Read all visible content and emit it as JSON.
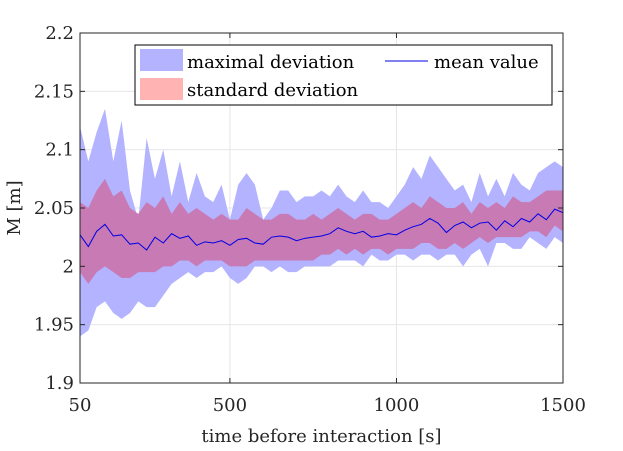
{
  "chart_data": {
    "type": "area",
    "xlabel": "time before interaction [s]",
    "ylabel": "M [m]",
    "xlim": [
      50,
      1500
    ],
    "ylim": [
      1.9,
      2.2
    ],
    "xticks": [
      50,
      500,
      1000,
      1500
    ],
    "xtick_labels": [
      "50",
      "500",
      "1000",
      "1500"
    ],
    "yticks": [
      1.9,
      1.95,
      2.0,
      2.05,
      2.1,
      2.15,
      2.2
    ],
    "ytick_labels": [
      "1.9",
      "1.95",
      "2",
      "2.05",
      "2.1",
      "2.15",
      "2.2"
    ],
    "grid": true,
    "legend_position": "top-right",
    "colors": {
      "max_fill": "#b3b3ff",
      "std_fill": "#ffb3b3",
      "std_overlap": "#c77ab3",
      "mean_line": "#0000e6",
      "axis": "#262626",
      "grid": "#e6e6e6"
    },
    "legend": [
      {
        "key": "max",
        "label": "maximal deviation"
      },
      {
        "key": "mean",
        "label": "mean value"
      },
      {
        "key": "std",
        "label": "standard deviation"
      }
    ],
    "x": [
      50,
      75,
      100,
      125,
      150,
      175,
      200,
      225,
      250,
      275,
      300,
      325,
      350,
      375,
      400,
      425,
      450,
      475,
      500,
      525,
      550,
      575,
      600,
      625,
      650,
      675,
      700,
      725,
      750,
      775,
      800,
      825,
      850,
      875,
      900,
      925,
      950,
      975,
      1000,
      1025,
      1050,
      1075,
      1100,
      1125,
      1150,
      1175,
      1200,
      1225,
      1250,
      1275,
      1300,
      1325,
      1350,
      1375,
      1400,
      1425,
      1450,
      1475,
      1500
    ],
    "series": [
      {
        "key": "max",
        "upper": [
          2.12,
          2.09,
          2.115,
          2.135,
          2.09,
          2.125,
          2.065,
          2.04,
          2.11,
          2.075,
          2.1,
          2.06,
          2.09,
          2.055,
          2.08,
          2.06,
          2.055,
          2.07,
          2.04,
          2.07,
          2.08,
          2.07,
          2.04,
          2.05,
          2.065,
          2.065,
          2.055,
          2.06,
          2.06,
          2.065,
          2.06,
          2.07,
          2.06,
          2.055,
          2.065,
          2.055,
          2.055,
          2.05,
          2.06,
          2.07,
          2.085,
          2.075,
          2.095,
          2.085,
          2.075,
          2.065,
          2.07,
          2.055,
          2.08,
          2.06,
          2.075,
          2.06,
          2.08,
          2.07,
          2.065,
          2.08,
          2.085,
          2.09,
          2.085
        ],
        "lower": [
          1.94,
          1.945,
          1.965,
          1.97,
          1.96,
          1.955,
          1.96,
          1.97,
          1.965,
          1.965,
          1.975,
          1.985,
          1.99,
          1.995,
          1.99,
          1.995,
          1.995,
          2.0,
          1.99,
          1.985,
          1.99,
          2.0,
          2.0,
          1.995,
          2.0,
          1.995,
          1.995,
          2.0,
          2.0,
          2.0,
          2.0,
          2.005,
          2.005,
          2.005,
          2.0,
          2.01,
          2.005,
          2.005,
          2.01,
          2.01,
          2.005,
          2.01,
          2.01,
          2.005,
          2.01,
          2.01,
          2.0,
          2.01,
          2.015,
          2.0,
          2.02,
          2.02,
          2.015,
          2.015,
          2.025,
          2.02,
          2.015,
          2.025,
          2.02
        ]
      },
      {
        "key": "std",
        "upper": [
          2.055,
          2.05,
          2.065,
          2.075,
          2.06,
          2.065,
          2.05,
          2.045,
          2.055,
          2.05,
          2.06,
          2.045,
          2.055,
          2.045,
          2.05,
          2.045,
          2.04,
          2.045,
          2.04,
          2.04,
          2.05,
          2.045,
          2.04,
          2.04,
          2.045,
          2.045,
          2.04,
          2.04,
          2.045,
          2.04,
          2.045,
          2.05,
          2.045,
          2.04,
          2.045,
          2.045,
          2.04,
          2.04,
          2.045,
          2.05,
          2.055,
          2.05,
          2.06,
          2.055,
          2.05,
          2.05,
          2.055,
          2.045,
          2.055,
          2.05,
          2.055,
          2.05,
          2.06,
          2.055,
          2.055,
          2.06,
          2.065,
          2.065,
          2.065
        ],
        "lower": [
          1.995,
          1.985,
          1.995,
          2.0,
          1.995,
          1.99,
          1.99,
          1.995,
          1.995,
          1.995,
          2.0,
          2.0,
          2.005,
          2.005,
          2.0,
          2.005,
          2.005,
          2.005,
          2.0,
          2.0,
          2.0,
          2.005,
          2.005,
          2.005,
          2.005,
          2.005,
          2.005,
          2.005,
          2.005,
          2.01,
          2.01,
          2.015,
          2.01,
          2.015,
          2.01,
          2.015,
          2.015,
          2.01,
          2.015,
          2.015,
          2.015,
          2.02,
          2.02,
          2.015,
          2.015,
          2.02,
          2.015,
          2.02,
          2.025,
          2.02,
          2.025,
          2.025,
          2.025,
          2.025,
          2.03,
          2.03,
          2.025,
          2.035,
          2.03
        ]
      },
      {
        "key": "mean",
        "values": [
          2.027,
          2.017,
          2.03,
          2.036,
          2.026,
          2.027,
          2.019,
          2.02,
          2.014,
          2.025,
          2.02,
          2.028,
          2.024,
          2.026,
          2.018,
          2.021,
          2.02,
          2.022,
          2.018,
          2.023,
          2.024,
          2.02,
          2.019,
          2.025,
          2.026,
          2.025,
          2.022,
          2.024,
          2.025,
          2.026,
          2.028,
          2.033,
          2.03,
          2.028,
          2.03,
          2.025,
          2.026,
          2.028,
          2.027,
          2.031,
          2.034,
          2.036,
          2.041,
          2.037,
          2.029,
          2.035,
          2.038,
          2.033,
          2.037,
          2.038,
          2.031,
          2.039,
          2.034,
          2.041,
          2.038,
          2.045,
          2.04,
          2.049,
          2.046
        ]
      }
    ]
  }
}
